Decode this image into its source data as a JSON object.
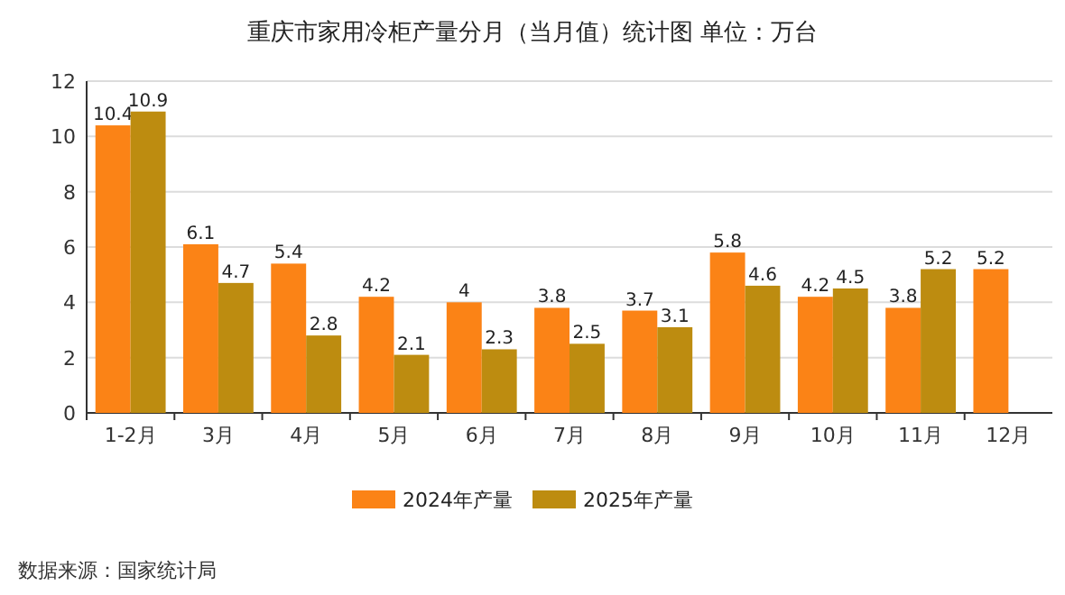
{
  "chart_data": {
    "type": "bar",
    "title": "重庆市家用冷柜产量分月（当月值）统计图 单位：万台",
    "categories": [
      "1-2月",
      "3月",
      "4月",
      "5月",
      "6月",
      "7月",
      "8月",
      "9月",
      "10月",
      "11月",
      "12月"
    ],
    "series": [
      {
        "name": "2024年产量",
        "color": "#fb8316",
        "values": [
          10.4,
          6.1,
          5.4,
          4.2,
          4,
          3.8,
          3.7,
          5.8,
          4.2,
          3.8,
          5.2
        ]
      },
      {
        "name": "2025年产量",
        "color": "#bd8c10",
        "values": [
          10.9,
          4.7,
          2.8,
          2.1,
          2.3,
          2.5,
          3.1,
          4.6,
          4.5,
          5.2,
          null
        ]
      }
    ],
    "ylim": [
      0,
      12
    ],
    "yticks": [
      0,
      2,
      4,
      6,
      8,
      10,
      12
    ],
    "grid": "y",
    "legend": "bottom",
    "data_labels": true,
    "annotations": [
      "数据来源：国家统计局"
    ]
  }
}
